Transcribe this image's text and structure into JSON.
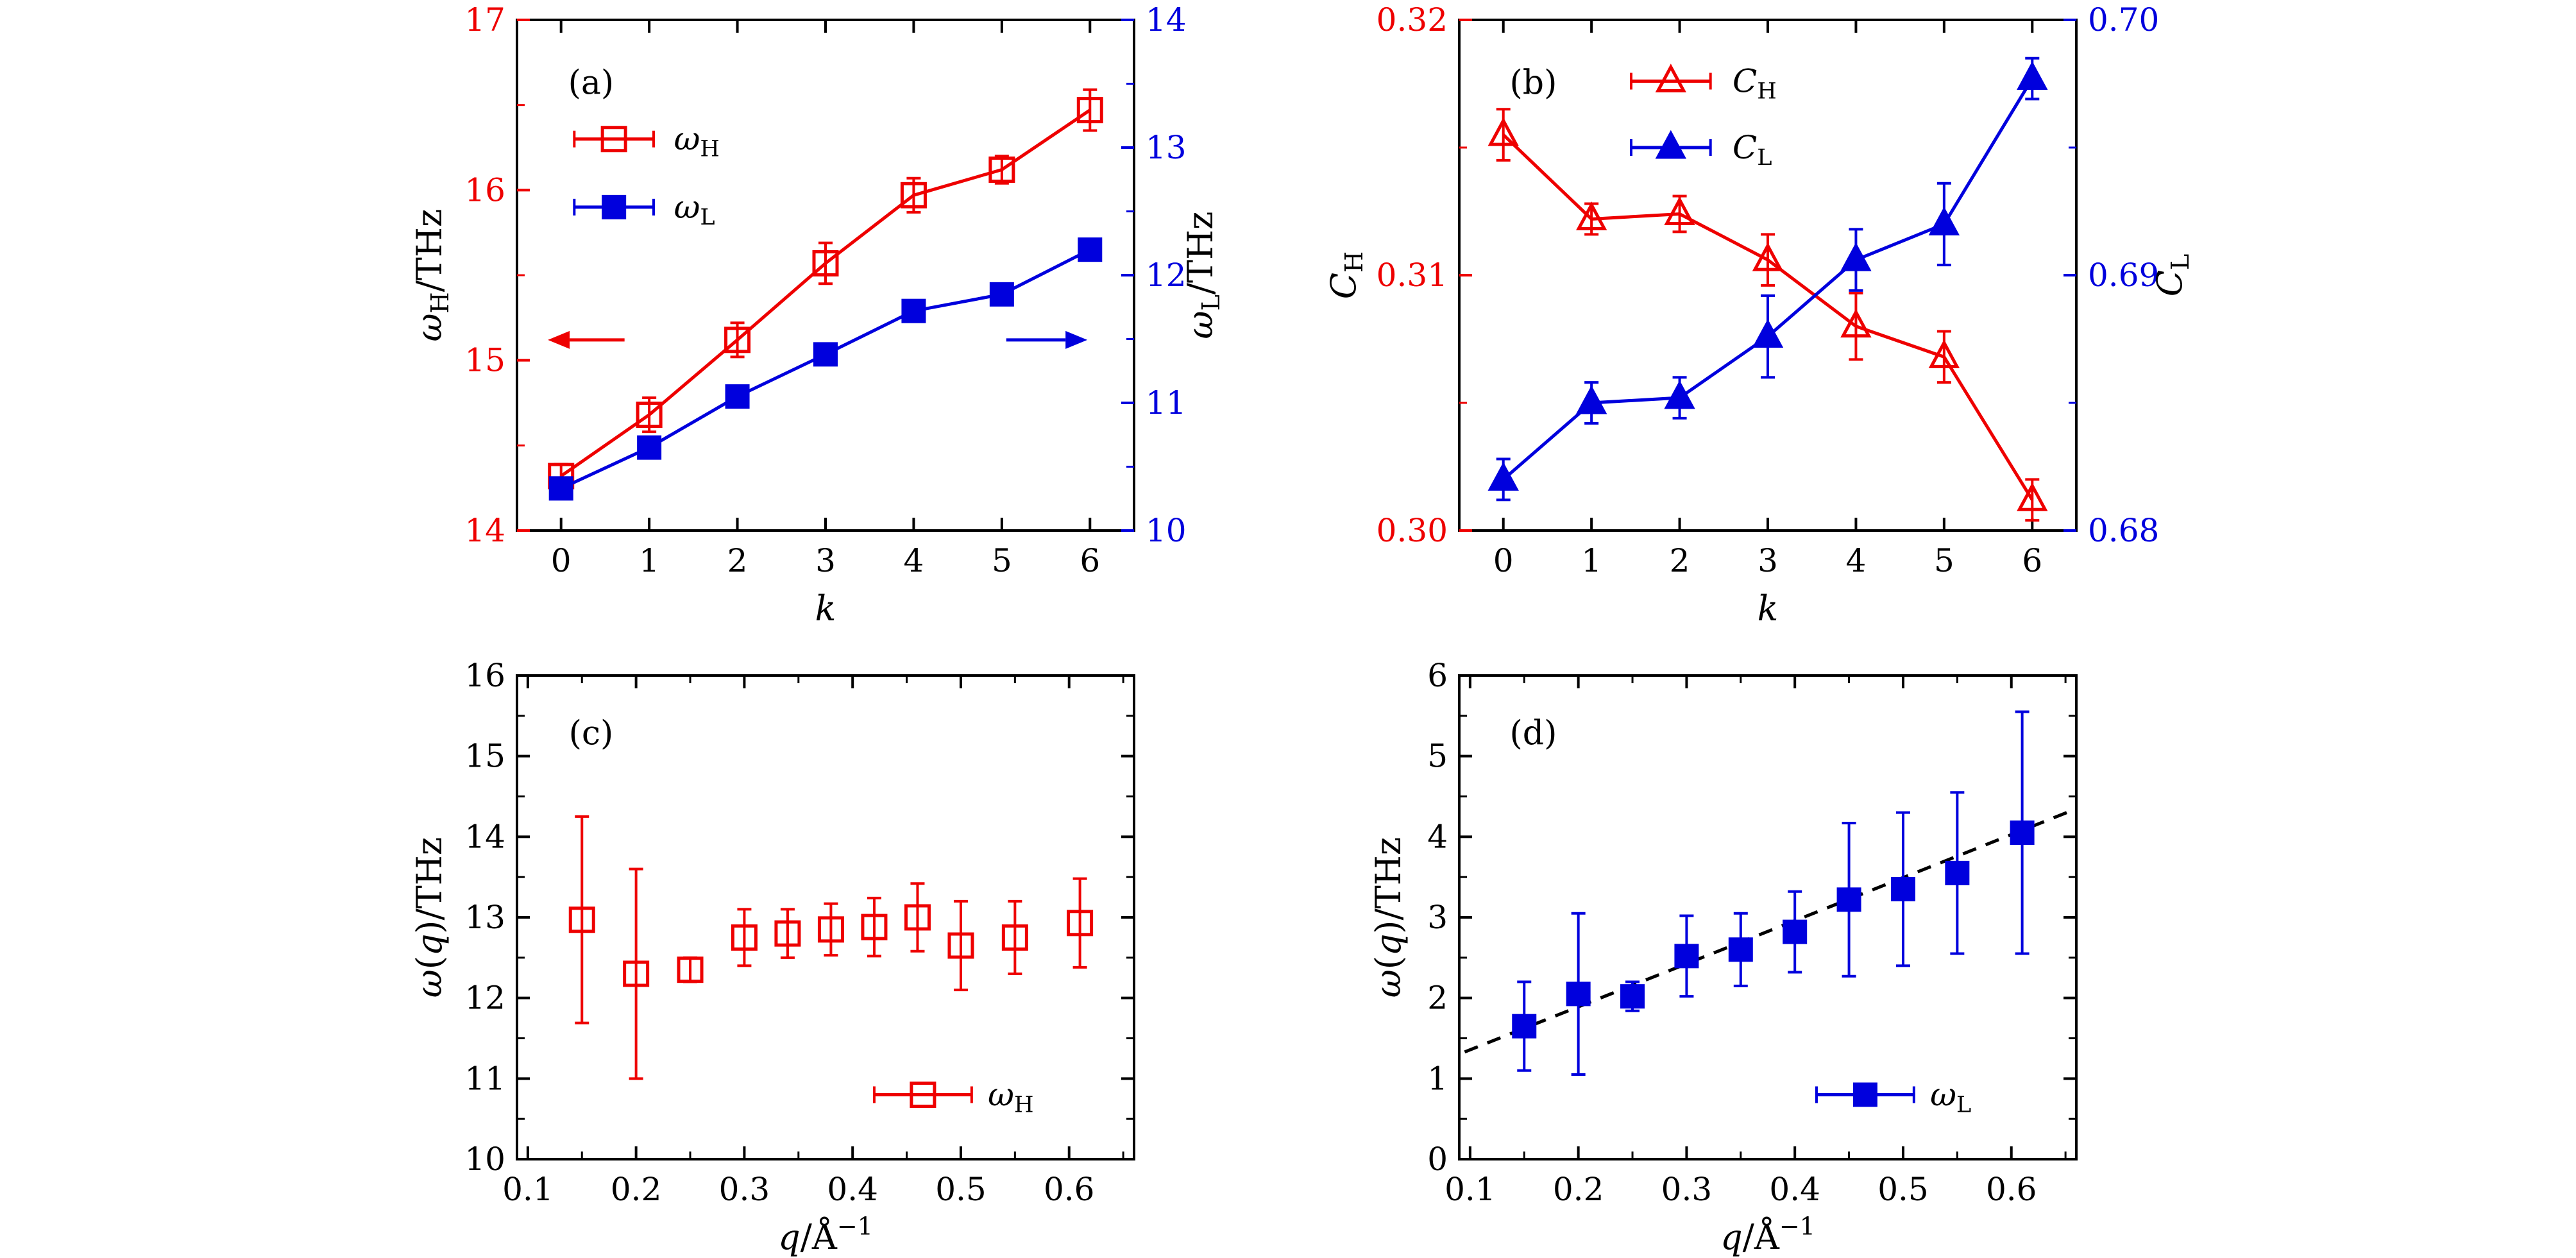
{
  "figure": {
    "background": "#ffffff",
    "panel_labels": [
      "(a)",
      "(b)",
      "(c)",
      "(d)"
    ]
  },
  "colors": {
    "red": "#ee0000",
    "blue": "#0000dd",
    "black": "#000000"
  },
  "chart_data": [
    {
      "id": "a",
      "type": "line",
      "panel_label": {
        "text": "(a)",
        "fx": 0.12,
        "fy": 0.1
      },
      "x": {
        "label": "k",
        "label_tokens": [
          {
            "t": "k",
            "i": true
          }
        ],
        "range": [
          -0.5,
          6.5
        ],
        "ticks": [
          0,
          1,
          2,
          3,
          4,
          5,
          6
        ],
        "tick_labels": [
          "0",
          "1",
          "2",
          "3",
          "4",
          "5",
          "6"
        ],
        "minor": []
      },
      "y_left": {
        "label": "ωH/THz",
        "label_tokens": [
          {
            "t": "ω",
            "i": true
          },
          {
            "t": "H",
            "sub": true
          },
          {
            "t": "/THz"
          }
        ],
        "range": [
          14,
          17
        ],
        "ticks": [
          14,
          15,
          16,
          17
        ],
        "tick_labels": [
          "14",
          "15",
          "16",
          "17"
        ],
        "minor": [
          14.5,
          15.5,
          16.5
        ],
        "color": "red"
      },
      "y_right": {
        "label": "ωL/THz",
        "label_tokens": [
          {
            "t": "ω",
            "i": true
          },
          {
            "t": "L",
            "sub": true
          },
          {
            "t": "/THz"
          }
        ],
        "range": [
          10,
          14
        ],
        "ticks": [
          10,
          11,
          12,
          13,
          14
        ],
        "tick_labels": [
          "10",
          "11",
          "12",
          "13",
          "14"
        ],
        "minor": [
          10.5,
          11.5,
          12.5,
          13.5
        ],
        "color": "blue"
      },
      "series": [
        {
          "name": "omega-H",
          "axis": "left",
          "color": "red",
          "marker": "square-open",
          "connect": true,
          "x": [
            0,
            1,
            2,
            3,
            4,
            5,
            6
          ],
          "y": [
            14.32,
            14.68,
            15.12,
            15.57,
            15.97,
            16.12,
            16.47
          ],
          "yerr": [
            0.07,
            0.1,
            0.1,
            0.12,
            0.1,
            0.08,
            0.12
          ]
        },
        {
          "name": "omega-L",
          "axis": "right",
          "color": "blue",
          "marker": "square-filled",
          "connect": true,
          "x": [
            0,
            1,
            2,
            3,
            4,
            5,
            6
          ],
          "y": [
            10.33,
            10.65,
            11.05,
            11.38,
            11.72,
            11.85,
            12.2
          ],
          "yerr": [
            0.06,
            0.06,
            0.06,
            0.06,
            0.06,
            0.06,
            0.06
          ]
        }
      ],
      "arrows": [
        {
          "color": "red",
          "x_from": 0.72,
          "x_to": -0.15,
          "y": 15.12
        },
        {
          "color": "blue",
          "x_from": 5.05,
          "x_to": 5.97,
          "y": 15.12
        }
      ],
      "legend": {
        "rows": [
          {
            "label": "ωH",
            "tokens": [
              {
                "t": "ω",
                "i": true
              },
              {
                "t": "H",
                "sub": true
              }
            ],
            "color": "red",
            "marker": "square-open",
            "x1": 0.15,
            "x2": 1.05,
            "y": 16.3,
            "tx": 1.28
          },
          {
            "label": "ωL",
            "tokens": [
              {
                "t": "ω",
                "i": true
              },
              {
                "t": "L",
                "sub": true
              }
            ],
            "color": "blue",
            "marker": "square-filled",
            "x1": 0.15,
            "x2": 1.05,
            "y": 15.9,
            "tx": 1.28
          }
        ]
      }
    },
    {
      "id": "b",
      "type": "line",
      "panel_label": {
        "text": "(b)",
        "fx": 0.12,
        "fy": 0.1
      },
      "x": {
        "label": "k",
        "label_tokens": [
          {
            "t": "k",
            "i": true
          }
        ],
        "range": [
          -0.5,
          6.5
        ],
        "ticks": [
          0,
          1,
          2,
          3,
          4,
          5,
          6
        ],
        "tick_labels": [
          "0",
          "1",
          "2",
          "3",
          "4",
          "5",
          "6"
        ],
        "minor": []
      },
      "y_left": {
        "label": "CH",
        "label_tokens": [
          {
            "t": "C",
            "i": true
          },
          {
            "t": "H",
            "sub": true
          }
        ],
        "range": [
          0.3,
          0.32
        ],
        "ticks": [
          0.3,
          0.31,
          0.32
        ],
        "tick_labels": [
          "0.30",
          "0.31",
          "0.32"
        ],
        "minor": [
          0.305,
          0.315
        ],
        "color": "red"
      },
      "y_right": {
        "label": "CL",
        "label_tokens": [
          {
            "t": "C",
            "i": true
          },
          {
            "t": "L",
            "sub": true
          }
        ],
        "range": [
          0.68,
          0.7
        ],
        "ticks": [
          0.68,
          0.69,
          0.7
        ],
        "tick_labels": [
          "0.68",
          "0.69",
          "0.70"
        ],
        "minor": [
          0.685,
          0.695
        ],
        "color": "blue"
      },
      "series": [
        {
          "name": "C-H",
          "axis": "left",
          "color": "red",
          "marker": "triangle-open",
          "connect": true,
          "x": [
            0,
            1,
            2,
            3,
            4,
            5,
            6
          ],
          "y": [
            0.3155,
            0.3122,
            0.3124,
            0.3106,
            0.308,
            0.3068,
            0.3012
          ],
          "yerr": [
            0.001,
            0.0006,
            0.0007,
            0.001,
            0.0013,
            0.001,
            0.0008
          ]
        },
        {
          "name": "C-L",
          "axis": "right",
          "color": "blue",
          "marker": "triangle-filled",
          "connect": true,
          "x": [
            0,
            1,
            2,
            3,
            4,
            5,
            6
          ],
          "y": [
            0.682,
            0.685,
            0.6852,
            0.6876,
            0.6906,
            0.692,
            0.6977
          ],
          "yerr": [
            0.0008,
            0.0008,
            0.0008,
            0.0016,
            0.0012,
            0.0016,
            0.0008
          ]
        }
      ],
      "arrows": [],
      "legend": {
        "rows": [
          {
            "label": "CH",
            "tokens": [
              {
                "t": "C",
                "i": true
              },
              {
                "t": "H",
                "sub": true
              }
            ],
            "color": "red",
            "marker": "triangle-open",
            "x1": 1.45,
            "x2": 2.35,
            "y": 0.3176,
            "tx": 2.6
          },
          {
            "label": "CL",
            "tokens": [
              {
                "t": "C",
                "i": true
              },
              {
                "t": "L",
                "sub": true
              }
            ],
            "color": "blue",
            "marker": "triangle-filled",
            "x1": 1.45,
            "x2": 2.35,
            "y": 0.315,
            "tx": 2.6
          }
        ]
      }
    },
    {
      "id": "c",
      "type": "scatter",
      "panel_label": {
        "text": "(c)",
        "fx": 0.12,
        "fy": 0.095
      },
      "x": {
        "label": "q/Å−1",
        "label_tokens": [
          {
            "t": "q",
            "i": true
          },
          {
            "t": "/Å"
          },
          {
            "t": "−1",
            "sup": true
          }
        ],
        "range": [
          0.09,
          0.66
        ],
        "ticks": [
          0.1,
          0.2,
          0.3,
          0.4,
          0.5,
          0.6
        ],
        "tick_labels": [
          "0.1",
          "0.2",
          "0.3",
          "0.4",
          "0.5",
          "0.6"
        ],
        "minor": [
          0.15,
          0.25,
          0.35,
          0.45,
          0.55,
          0.65
        ]
      },
      "y_left": {
        "label": "ω(q)/THz",
        "label_tokens": [
          {
            "t": "ω",
            "i": true
          },
          {
            "t": "("
          },
          {
            "t": "q",
            "i": true
          },
          {
            "t": ")"
          },
          {
            "t": "/THz"
          }
        ],
        "range": [
          10,
          16
        ],
        "ticks": [
          10,
          11,
          12,
          13,
          14,
          15,
          16
        ],
        "tick_labels": [
          "10",
          "11",
          "12",
          "13",
          "14",
          "15",
          "16"
        ],
        "minor": [
          10.5,
          11.5,
          12.5,
          13.5,
          14.5,
          15.5
        ],
        "color": "black"
      },
      "series": [
        {
          "name": "omega-H-q",
          "axis": "left",
          "color": "red",
          "marker": "square-open",
          "connect": false,
          "x": [
            0.15,
            0.2,
            0.25,
            0.3,
            0.34,
            0.38,
            0.42,
            0.46,
            0.5,
            0.55,
            0.61
          ],
          "y": [
            12.97,
            12.3,
            12.35,
            12.75,
            12.8,
            12.85,
            12.88,
            13.0,
            12.65,
            12.75,
            12.93
          ],
          "yerr": [
            1.28,
            1.3,
            0.15,
            0.35,
            0.3,
            0.32,
            0.36,
            0.42,
            0.55,
            0.45,
            0.55
          ]
        }
      ],
      "arrows": [],
      "legend": {
        "rows": [
          {
            "label": "ωH",
            "tokens": [
              {
                "t": "ω",
                "i": true
              },
              {
                "t": "H",
                "sub": true
              }
            ],
            "color": "red",
            "marker": "square-open",
            "x1": 0.42,
            "x2": 0.51,
            "y": 10.8,
            "tx": 0.525
          }
        ]
      }
    },
    {
      "id": "d",
      "type": "scatter",
      "panel_label": {
        "text": "(d)",
        "fx": 0.12,
        "fy": 0.095
      },
      "x": {
        "label": "q/Å−1",
        "label_tokens": [
          {
            "t": "q",
            "i": true
          },
          {
            "t": "/Å"
          },
          {
            "t": "−1",
            "sup": true
          }
        ],
        "range": [
          0.09,
          0.66
        ],
        "ticks": [
          0.1,
          0.2,
          0.3,
          0.4,
          0.5,
          0.6
        ],
        "tick_labels": [
          "0.1",
          "0.2",
          "0.3",
          "0.4",
          "0.5",
          "0.6"
        ],
        "minor": [
          0.15,
          0.25,
          0.35,
          0.45,
          0.55,
          0.65
        ]
      },
      "y_left": {
        "label": "ω(q)/THz",
        "label_tokens": [
          {
            "t": "ω",
            "i": true
          },
          {
            "t": "("
          },
          {
            "t": "q",
            "i": true
          },
          {
            "t": ")"
          },
          {
            "t": "/THz"
          }
        ],
        "range": [
          0,
          6
        ],
        "ticks": [
          0,
          1,
          2,
          3,
          4,
          5,
          6
        ],
        "tick_labels": [
          "0",
          "1",
          "2",
          "3",
          "4",
          "5",
          "6"
        ],
        "minor": [
          0.5,
          1.5,
          2.5,
          3.5,
          4.5,
          5.5
        ],
        "color": "black"
      },
      "series": [
        {
          "name": "omega-L-q",
          "axis": "left",
          "color": "blue",
          "marker": "square-filled",
          "connect": false,
          "x": [
            0.15,
            0.2,
            0.25,
            0.3,
            0.35,
            0.4,
            0.45,
            0.5,
            0.55,
            0.61
          ],
          "y": [
            1.65,
            2.05,
            2.02,
            2.52,
            2.6,
            2.82,
            3.22,
            3.35,
            3.55,
            4.05
          ],
          "yerr": [
            0.55,
            1.0,
            0.18,
            0.5,
            0.45,
            0.5,
            0.95,
            0.95,
            1.0,
            1.5
          ]
        }
      ],
      "fit_line": {
        "x": [
          0.095,
          0.655
        ],
        "y": [
          1.33,
          4.32
        ],
        "color": "black",
        "dash": true
      },
      "arrows": [],
      "legend": {
        "rows": [
          {
            "label": "ωL",
            "tokens": [
              {
                "t": "ω",
                "i": true
              },
              {
                "t": "L",
                "sub": true
              }
            ],
            "color": "blue",
            "marker": "square-filled",
            "x1": 0.42,
            "x2": 0.51,
            "y": 0.8,
            "tx": 0.525
          }
        ]
      }
    }
  ]
}
